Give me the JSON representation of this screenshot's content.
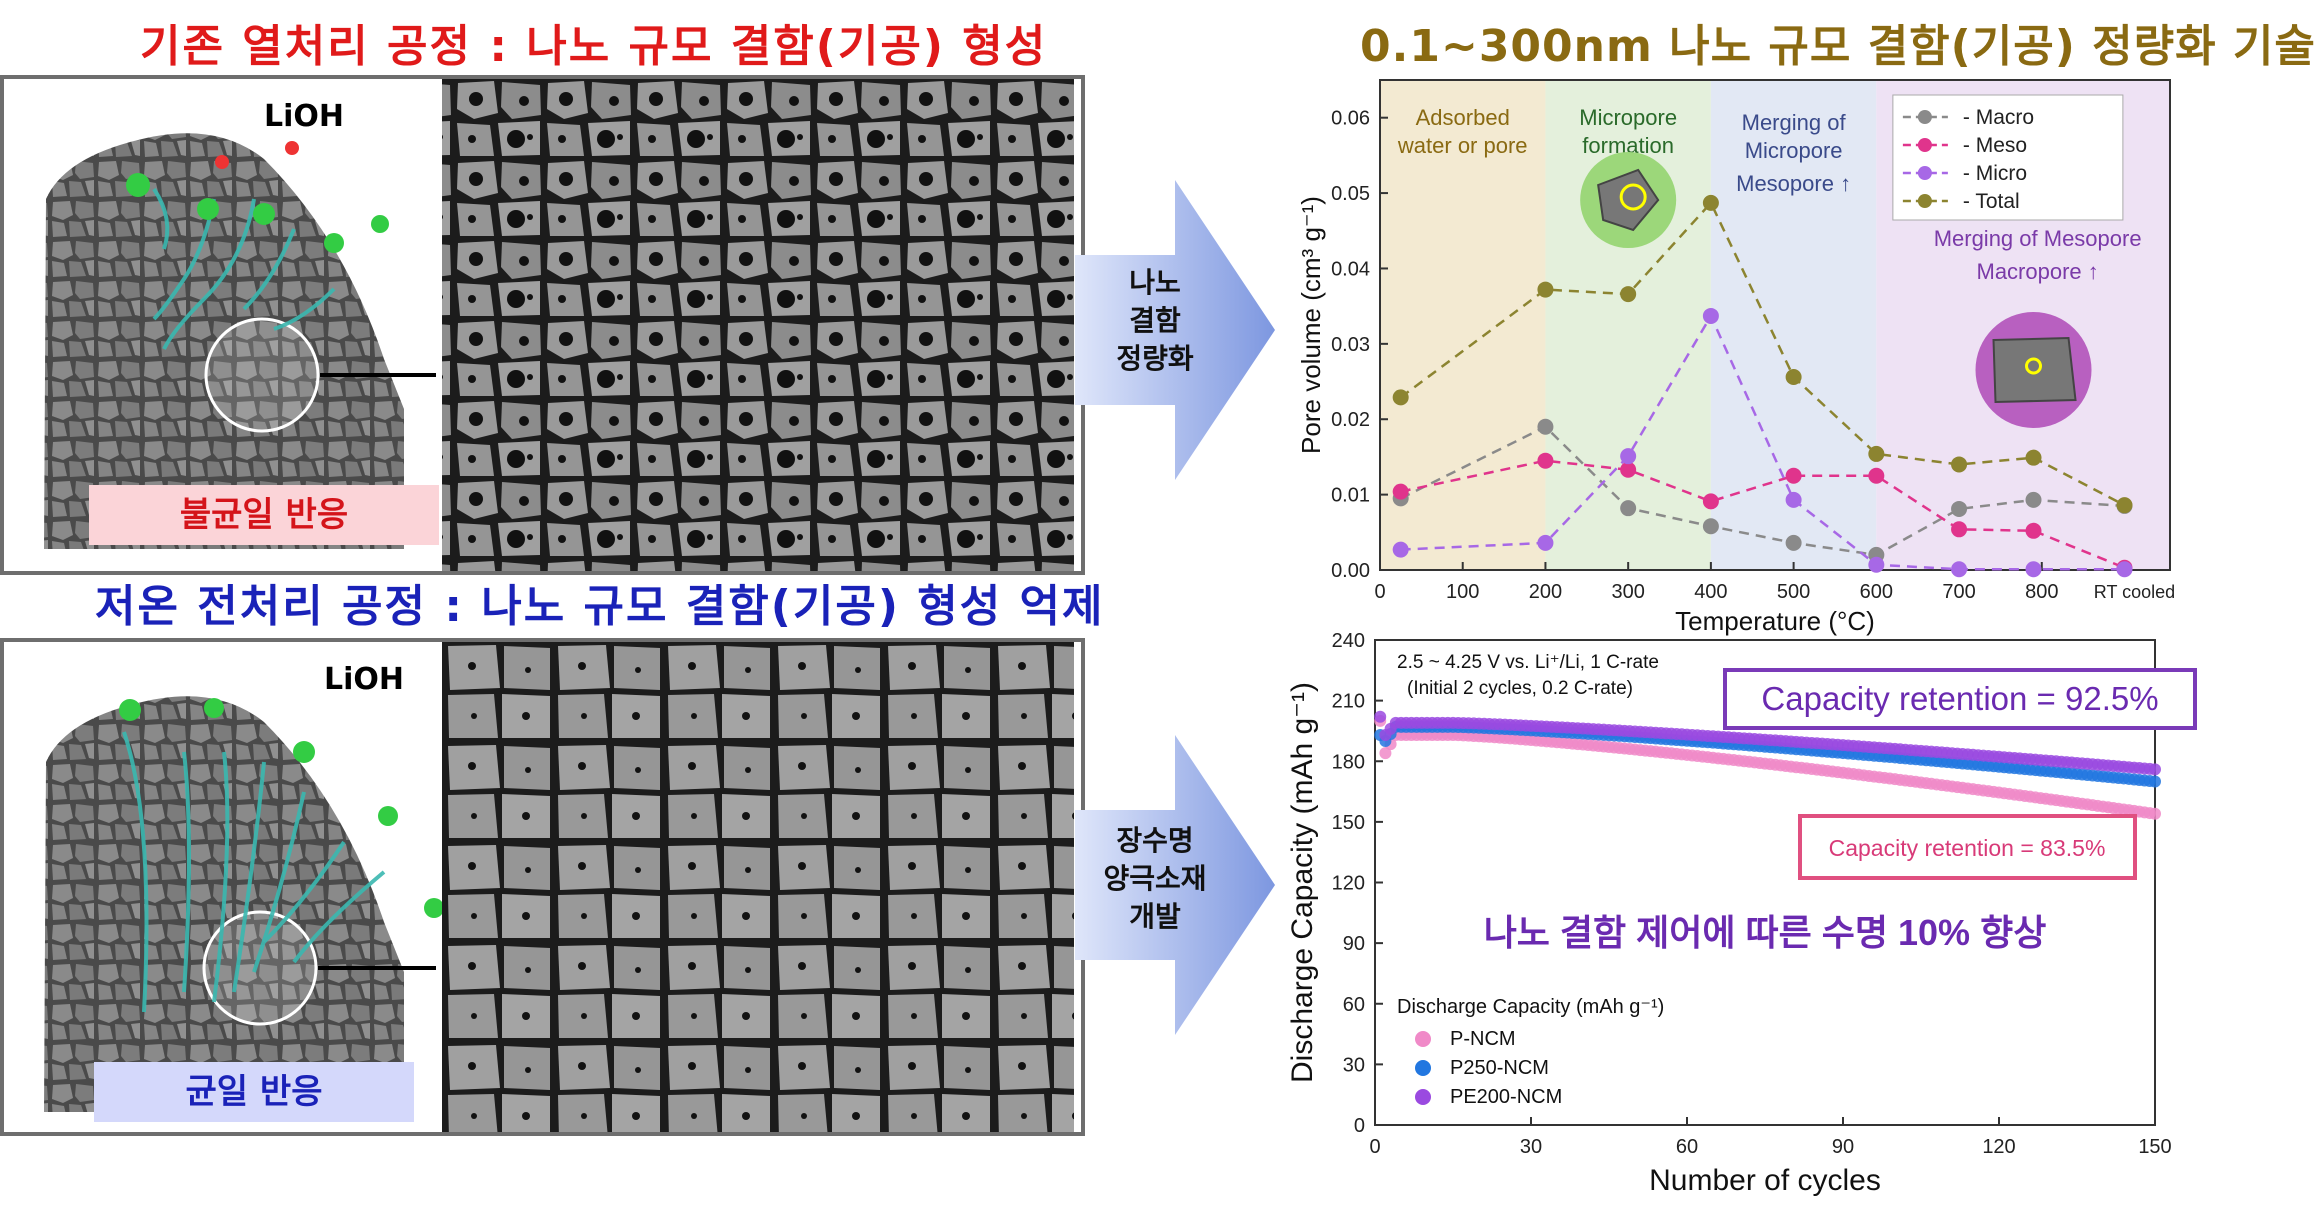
{
  "titles": {
    "conventional": "기존 열처리 공정 : 나노 규모 결함(기공) 형성",
    "low_temp": "저온 전처리 공정 : 나노 규모 결함(기공) 형성 억제",
    "quantification": "0.1~300nm 나노 규모 결함(기공) 정량화 기술"
  },
  "panels": {
    "top_reagent": "LiOH",
    "top_result": "불균일 반응",
    "bottom_reagent": "LiOH",
    "bottom_result": "균일 반응"
  },
  "arrows": {
    "top_lines": [
      "나노",
      "결함",
      "정량화"
    ],
    "bottom_lines": [
      "장수명",
      "양극소재",
      "개발"
    ]
  },
  "colors": {
    "red": "#e01a1a",
    "blue": "#1a22b8",
    "gold": "#8a6a12",
    "macro": "#8a8a8a",
    "meso": "#e0348c",
    "micro": "#a768e6",
    "total": "#8c8430",
    "p_ncm": "#f08ac8",
    "p250_ncm": "#2277e0",
    "pe200_ncm": "#9a4ae0"
  },
  "chart_data": [
    {
      "type": "line",
      "xlabel": "Temperature (°C)",
      "ylabel": "Pore volume (cm³ g⁻¹)",
      "ylim": [
        0,
        0.065
      ],
      "yticks": [
        "0.00",
        "0.01",
        "0.02",
        "0.03",
        "0.04",
        "0.05",
        "0.06"
      ],
      "xticks": [
        "0",
        "100",
        "200",
        "300",
        "400",
        "500",
        "600",
        "700",
        "800",
        "RT cooled"
      ],
      "x": [
        25,
        200,
        300,
        400,
        500,
        600,
        700,
        790,
        900
      ],
      "series": [
        {
          "name": "Macro",
          "values": [
            0.0095,
            0.019,
            0.0082,
            0.0058,
            0.0036,
            0.002,
            0.0081,
            0.0093,
            0.0085
          ]
        },
        {
          "name": "Meso",
          "values": [
            0.0104,
            0.0145,
            0.0133,
            0.0091,
            0.0125,
            0.0125,
            0.0054,
            0.0052,
            0.0003
          ]
        },
        {
          "name": "Micro",
          "values": [
            0.0027,
            0.0036,
            0.0151,
            0.0337,
            0.0093,
            0.0007,
            0.0001,
            0.0001,
            0.0001
          ]
        },
        {
          "name": "Total",
          "values": [
            0.0229,
            0.0372,
            0.0366,
            0.0487,
            0.0256,
            0.0154,
            0.014,
            0.0149,
            0.0086
          ]
        }
      ],
      "regions": [
        {
          "lines": [
            "Adsorbed",
            "water or pore"
          ]
        },
        {
          "lines": [
            "Micropore",
            "formation"
          ]
        },
        {
          "lines": [
            "Merging of",
            "Micropore",
            "Mesopore ↑"
          ]
        },
        {
          "lines": [
            "Merging of Mesopore",
            "Macropore ↑"
          ]
        }
      ],
      "legend_position": "top-right"
    },
    {
      "type": "scatter",
      "xlabel": "Number of cycles",
      "ylabel": "Discharge Capacity (mAh g⁻¹)",
      "xlim": [
        0,
        150
      ],
      "ylim": [
        0,
        240
      ],
      "xticks": [
        "0",
        "30",
        "60",
        "90",
        "120",
        "150"
      ],
      "yticks": [
        "0",
        "30",
        "60",
        "90",
        "120",
        "150",
        "180",
        "210",
        "240"
      ],
      "condition_line1": "2.5 ~ 4.25 V vs. Li⁺/Li, 1 C-rate",
      "condition_line2": "(Initial 2 cycles, 0.2 C-rate)",
      "annotation_high": "Capacity retention = 92.5%",
      "annotation_low": "Capacity retention = 83.5%",
      "headline": "나노 결함 제어에 따른 수명 10% 향상",
      "legend_title": "Discharge Capacity (mAh g⁻¹)",
      "series": [
        {
          "name": "P-NCM",
          "start": 200,
          "early": 184,
          "peak": 193,
          "end": 154
        },
        {
          "name": "P250-NCM",
          "start": 193,
          "early": 190,
          "peak": 197,
          "end": 170
        },
        {
          "name": "PE200-NCM",
          "start": 202,
          "early": 193,
          "peak": 199,
          "end": 176
        }
      ],
      "legend_position": "bottom-left"
    }
  ]
}
